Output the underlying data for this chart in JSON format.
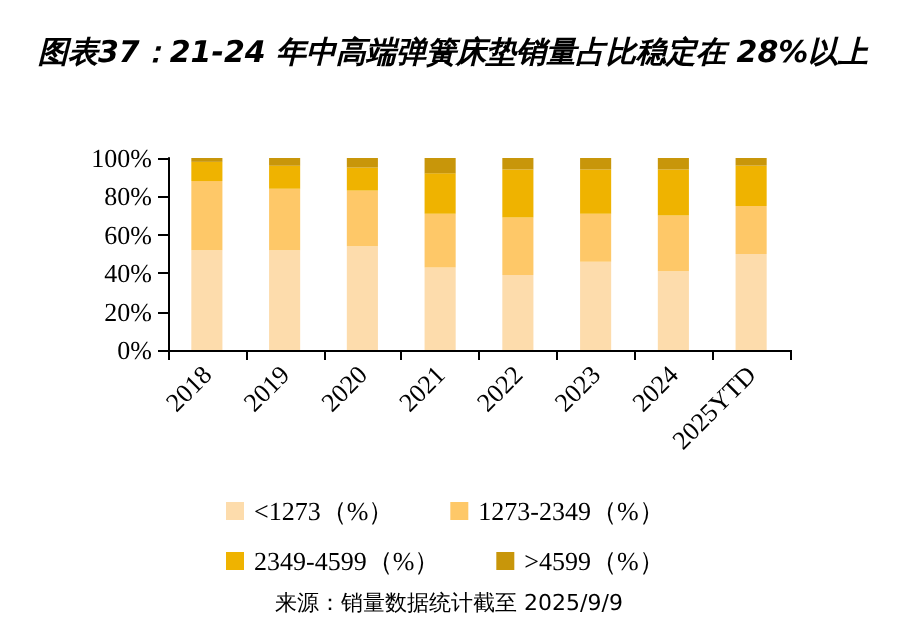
{
  "chart_data": {
    "type": "bar",
    "stacked": true,
    "title": "图表37：21-24 年中高端弹簧床垫销量占比稳定在 28%以上",
    "categories": [
      "2018",
      "2019",
      "2020",
      "2021",
      "2022",
      "2023",
      "2024",
      "2025YTD"
    ],
    "series": [
      {
        "name": "<1273（%）",
        "color": "#fddcac",
        "values": [
          52,
          52,
          54,
          43,
          39,
          46,
          41,
          50
        ]
      },
      {
        "name": "1273-2349（%）",
        "color": "#fec868",
        "values": [
          36,
          32,
          29,
          28,
          30,
          25,
          29,
          25
        ]
      },
      {
        "name": "2349-4599（%）",
        "color": "#efb300",
        "values": [
          10,
          12,
          12,
          21,
          25,
          23,
          24,
          21
        ]
      },
      {
        "name": ">4599（%）",
        "color": "#c8960a",
        "values": [
          2,
          4,
          5,
          8,
          6,
          6,
          6,
          4
        ]
      }
    ],
    "ylim": [
      0,
      100
    ],
    "yticks": [
      {
        "value": 0,
        "label": "0%"
      },
      {
        "value": 20,
        "label": "20%"
      },
      {
        "value": 40,
        "label": "40%"
      },
      {
        "value": 60,
        "label": "60%"
      },
      {
        "value": 80,
        "label": "80%"
      },
      {
        "value": 100,
        "label": "100%"
      }
    ],
    "grid": false,
    "legend": "bottom",
    "annotations": [
      "来源：销量数据统计截至 2025/9/9"
    ]
  }
}
